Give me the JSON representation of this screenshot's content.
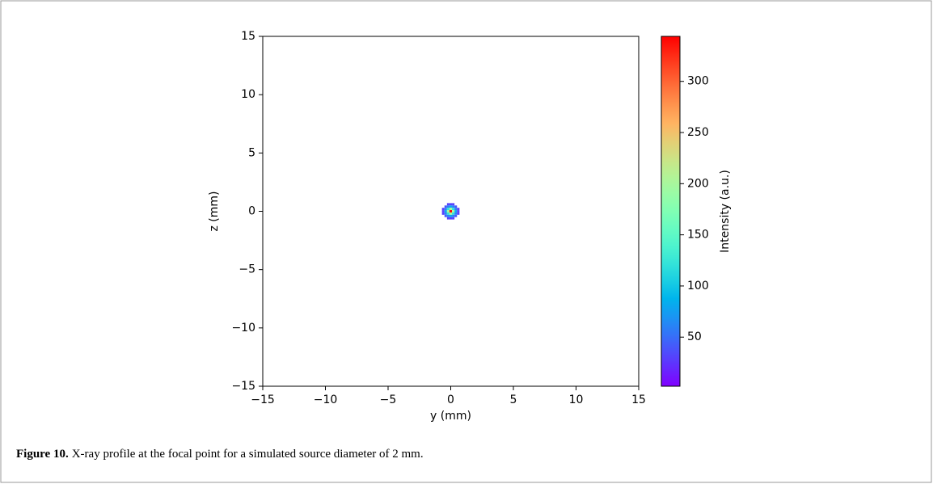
{
  "chart_data": {
    "type": "heatmap",
    "xlabel": "y (mm)",
    "ylabel": "z (mm)",
    "x": [
      -0.6,
      -0.4,
      -0.2,
      0,
      0.2,
      0.4,
      0.6
    ],
    "y": [
      0.6,
      0.4,
      0.2,
      0,
      -0.2,
      -0.4,
      -0.6
    ],
    "z": [
      [
        null,
        null,
        30,
        30,
        30,
        null,
        null
      ],
      [
        null,
        40,
        60,
        80,
        60,
        40,
        null
      ],
      [
        30,
        60,
        120,
        200,
        120,
        60,
        30
      ],
      [
        30,
        80,
        200,
        344,
        200,
        80,
        30
      ],
      [
        30,
        60,
        120,
        200,
        120,
        60,
        30
      ],
      [
        null,
        40,
        60,
        80,
        60,
        40,
        null
      ],
      [
        null,
        null,
        30,
        30,
        30,
        null,
        null
      ]
    ],
    "colormap": "rainbow",
    "xlim": [
      -15,
      15
    ],
    "ylim": [
      -15,
      15
    ],
    "xticks": [
      {
        "value": -15,
        "label": "−15"
      },
      {
        "value": -10,
        "label": "−10"
      },
      {
        "value": -5,
        "label": "−5"
      },
      0,
      5,
      10,
      15
    ],
    "yticks": [
      {
        "value": -15,
        "label": "−15"
      },
      {
        "value": -10,
        "label": "−10"
      },
      {
        "value": -5,
        "label": "−5"
      },
      0,
      5,
      10,
      15
    ],
    "colorbar": {
      "label": "Intensity (a.u.)",
      "clim": [
        2,
        344
      ],
      "ticks": [
        50,
        100,
        150,
        200,
        250,
        300
      ]
    }
  },
  "caption": {
    "label": "Figure 10.",
    "text": "X-ray profile at the focal point for a simulated source diameter of 2 mm."
  }
}
